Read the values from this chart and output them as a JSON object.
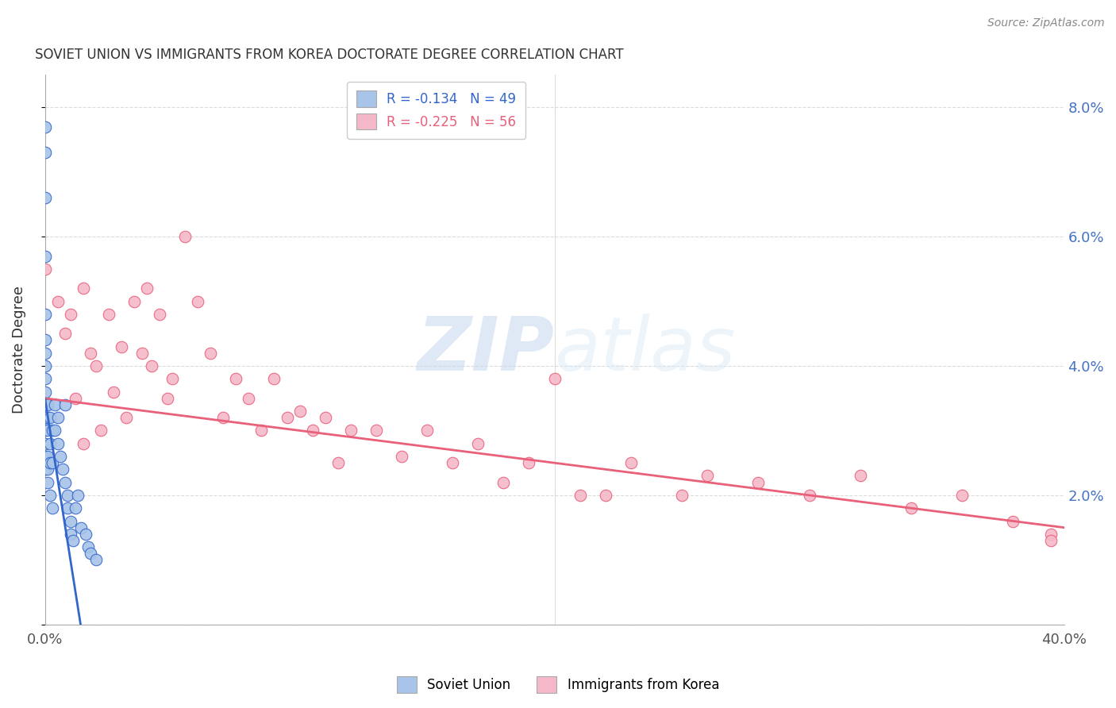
{
  "title": "SOVIET UNION VS IMMIGRANTS FROM KOREA DOCTORATE DEGREE CORRELATION CHART",
  "source": "Source: ZipAtlas.com",
  "ylabel": "Doctorate Degree",
  "xlim": [
    0.0,
    0.4
  ],
  "ylim": [
    0.0,
    0.085
  ],
  "yticks": [
    0.0,
    0.02,
    0.04,
    0.06,
    0.08
  ],
  "ytick_labels": [
    "",
    "2.0%",
    "4.0%",
    "6.0%",
    "8.0%"
  ],
  "xticks": [
    0.0,
    0.04,
    0.08,
    0.12,
    0.16,
    0.2,
    0.24,
    0.28,
    0.32,
    0.36,
    0.4
  ],
  "legend_r_blue": "-0.134",
  "legend_n_blue": "49",
  "legend_r_pink": "-0.225",
  "legend_n_pink": "56",
  "blue_color": "#a8c4e8",
  "pink_color": "#f5b8c8",
  "blue_line_color": "#3366cc",
  "pink_line_color": "#e8607a",
  "blue_dash_color": "#7aaad8",
  "watermark_zip": "ZIP",
  "watermark_atlas": "atlas",
  "soviet_x": [
    0.0,
    0.0,
    0.0,
    0.0,
    0.0,
    0.0,
    0.0,
    0.0,
    0.0,
    0.0,
    0.0,
    0.0,
    0.0,
    0.0,
    0.0,
    0.0,
    0.001,
    0.001,
    0.001,
    0.001,
    0.001,
    0.001,
    0.002,
    0.002,
    0.002,
    0.002,
    0.003,
    0.003,
    0.003,
    0.004,
    0.004,
    0.005,
    0.005,
    0.006,
    0.007,
    0.008,
    0.008,
    0.009,
    0.009,
    0.01,
    0.01,
    0.011,
    0.012,
    0.013,
    0.014,
    0.016,
    0.017,
    0.018,
    0.02
  ],
  "soviet_y": [
    0.077,
    0.073,
    0.066,
    0.057,
    0.048,
    0.044,
    0.042,
    0.04,
    0.038,
    0.036,
    0.034,
    0.032,
    0.03,
    0.028,
    0.026,
    0.024,
    0.034,
    0.032,
    0.03,
    0.026,
    0.024,
    0.022,
    0.032,
    0.028,
    0.025,
    0.02,
    0.03,
    0.025,
    0.018,
    0.034,
    0.03,
    0.032,
    0.028,
    0.026,
    0.024,
    0.034,
    0.022,
    0.02,
    0.018,
    0.016,
    0.014,
    0.013,
    0.018,
    0.02,
    0.015,
    0.014,
    0.012,
    0.011,
    0.01
  ],
  "korea_x": [
    0.0,
    0.005,
    0.008,
    0.01,
    0.012,
    0.015,
    0.018,
    0.02,
    0.022,
    0.025,
    0.027,
    0.03,
    0.032,
    0.035,
    0.038,
    0.04,
    0.042,
    0.045,
    0.048,
    0.05,
    0.055,
    0.06,
    0.065,
    0.07,
    0.075,
    0.08,
    0.085,
    0.09,
    0.095,
    0.1,
    0.105,
    0.11,
    0.115,
    0.12,
    0.13,
    0.14,
    0.15,
    0.16,
    0.17,
    0.18,
    0.19,
    0.2,
    0.21,
    0.22,
    0.23,
    0.25,
    0.26,
    0.28,
    0.3,
    0.32,
    0.34,
    0.36,
    0.38,
    0.395,
    0.395,
    0.015
  ],
  "korea_y": [
    0.055,
    0.05,
    0.045,
    0.048,
    0.035,
    0.052,
    0.042,
    0.04,
    0.03,
    0.048,
    0.036,
    0.043,
    0.032,
    0.05,
    0.042,
    0.052,
    0.04,
    0.048,
    0.035,
    0.038,
    0.06,
    0.05,
    0.042,
    0.032,
    0.038,
    0.035,
    0.03,
    0.038,
    0.032,
    0.033,
    0.03,
    0.032,
    0.025,
    0.03,
    0.03,
    0.026,
    0.03,
    0.025,
    0.028,
    0.022,
    0.025,
    0.038,
    0.02,
    0.02,
    0.025,
    0.02,
    0.023,
    0.022,
    0.02,
    0.023,
    0.018,
    0.02,
    0.016,
    0.014,
    0.013,
    0.028
  ]
}
